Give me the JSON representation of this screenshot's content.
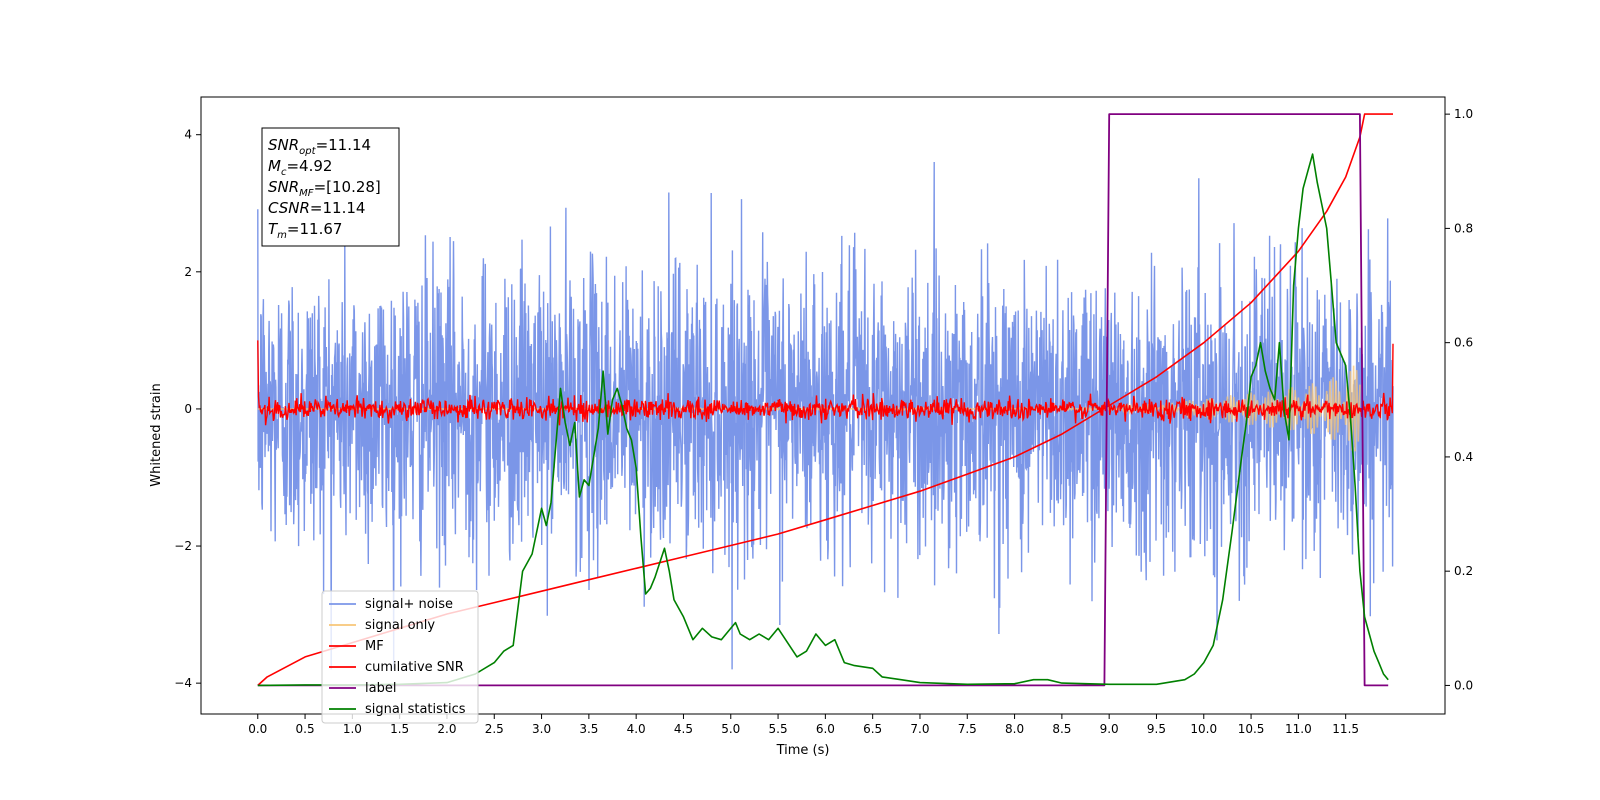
{
  "chart_data": {
    "type": "line",
    "title": "",
    "xlabel": "Time (s)",
    "ylabel_left": "Whitened strain",
    "ylabel_right": "",
    "xlim": [
      -0.6,
      12.55
    ],
    "ylim_left": [
      -4.45,
      4.55
    ],
    "ylim_right": [
      -0.05,
      1.03
    ],
    "x_ticks": [
      "0.0",
      "0.5",
      "1.0",
      "1.5",
      "2.0",
      "2.5",
      "3.0",
      "3.5",
      "4.0",
      "4.5",
      "5.0",
      "5.5",
      "6.0",
      "6.5",
      "7.0",
      "7.5",
      "8.0",
      "8.5",
      "9.0",
      "9.5",
      "10.0",
      "10.5",
      "11.0",
      "11.5"
    ],
    "y_ticks_left": [
      "−4",
      "−2",
      "0",
      "2",
      "4"
    ],
    "y_ticks_right": [
      "0.0",
      "0.2",
      "0.4",
      "0.6",
      "0.8",
      "1.0"
    ],
    "grid": false,
    "legend_position": "lower-left",
    "legend": [
      {
        "name": "signal+ noise",
        "color": "#7b96e8"
      },
      {
        "name": "signal only",
        "color": "#f7c678"
      },
      {
        "name": "MF",
        "color": "#ff0000"
      },
      {
        "name": "cumilative SNR",
        "color": "#ff0000"
      },
      {
        "name": "label",
        "color": "#800080"
      },
      {
        "name": "signal statistics",
        "color": "#008000"
      }
    ],
    "annotation": {
      "lines": [
        {
          "sym": "SNR",
          "sub": "opt",
          "val": "=11.14"
        },
        {
          "sym": "M",
          "sub": "c",
          "val": "=4.92"
        },
        {
          "sym": "SNR",
          "sub": "MF",
          "val": "=[10.28]"
        },
        {
          "sym": "CSNR",
          "sub": "",
          "val": "=11.14"
        },
        {
          "sym": "T",
          "sub": "m",
          "val": "=11.67"
        }
      ]
    },
    "series": [
      {
        "name": "signal+ noise",
        "axis": "left",
        "color": "#7b96e8",
        "kind": "noise",
        "x_start": 0.0,
        "x_end": 12.0,
        "amplitude_std": 1.0,
        "peak_range": [
          -3.8,
          4.15
        ]
      },
      {
        "name": "signal only",
        "axis": "left",
        "color": "#f7c678",
        "kind": "chirp-envelope",
        "x": [
          0.0,
          9.0,
          9.5,
          10.0,
          10.5,
          11.0,
          11.3,
          11.5,
          11.65
        ],
        "envelope": [
          0.0,
          0.02,
          0.08,
          0.15,
          0.24,
          0.33,
          0.42,
          0.55,
          0.7
        ]
      },
      {
        "name": "MF",
        "axis": "left",
        "color": "#ff0000",
        "kind": "noise",
        "x_start": 0.0,
        "x_end": 12.0,
        "amplitude_std": 0.08,
        "edge_values": [
          1.0,
          0.95
        ]
      },
      {
        "name": "cumilative SNR",
        "axis": "right",
        "color": "#ff0000",
        "x": [
          0.0,
          0.1,
          0.5,
          1.0,
          1.5,
          2.0,
          2.5,
          3.0,
          3.5,
          4.0,
          4.5,
          5.0,
          5.5,
          6.0,
          6.5,
          7.0,
          7.5,
          8.0,
          8.5,
          9.0,
          9.5,
          10.0,
          10.5,
          11.0,
          11.3,
          11.5,
          11.65,
          11.7,
          12.0
        ],
        "y": [
          0.0,
          0.015,
          0.05,
          0.075,
          0.1,
          0.125,
          0.145,
          0.165,
          0.185,
          0.205,
          0.225,
          0.245,
          0.265,
          0.29,
          0.315,
          0.34,
          0.37,
          0.4,
          0.44,
          0.49,
          0.54,
          0.6,
          0.67,
          0.76,
          0.83,
          0.89,
          0.96,
          1.0,
          1.0
        ]
      },
      {
        "name": "label",
        "axis": "right",
        "color": "#800080",
        "x": [
          0.0,
          8.95,
          9.0,
          11.65,
          11.7,
          11.95
        ],
        "y": [
          0.0,
          0.0,
          1.0,
          1.0,
          0.0,
          0.0
        ]
      },
      {
        "name": "signal statistics",
        "axis": "right",
        "color": "#008000",
        "x": [
          0.0,
          0.5,
          1.0,
          1.5,
          2.0,
          2.3,
          2.5,
          2.6,
          2.7,
          2.8,
          2.9,
          3.0,
          3.05,
          3.1,
          3.15,
          3.2,
          3.25,
          3.3,
          3.35,
          3.4,
          3.45,
          3.5,
          3.55,
          3.6,
          3.65,
          3.7,
          3.75,
          3.8,
          3.85,
          3.9,
          3.95,
          4.0,
          4.05,
          4.1,
          4.15,
          4.2,
          4.3,
          4.35,
          4.4,
          4.5,
          4.6,
          4.7,
          4.8,
          4.9,
          5.0,
          5.05,
          5.1,
          5.2,
          5.3,
          5.4,
          5.5,
          5.6,
          5.7,
          5.8,
          5.9,
          6.0,
          6.1,
          6.2,
          6.3,
          6.5,
          6.6,
          6.8,
          7.0,
          7.5,
          8.0,
          8.2,
          8.35,
          8.5,
          9.0,
          9.5,
          9.8,
          9.9,
          10.0,
          10.1,
          10.2,
          10.3,
          10.4,
          10.45,
          10.5,
          10.55,
          10.6,
          10.65,
          10.7,
          10.75,
          10.8,
          10.85,
          10.9,
          10.95,
          11.0,
          11.05,
          11.1,
          11.15,
          11.2,
          11.25,
          11.3,
          11.35,
          11.4,
          11.45,
          11.5,
          11.55,
          11.6,
          11.65,
          11.7,
          11.75,
          11.8,
          11.85,
          11.9,
          11.95
        ],
        "y": [
          0.0,
          0.001,
          0.001,
          0.002,
          0.005,
          0.02,
          0.04,
          0.06,
          0.07,
          0.2,
          0.23,
          0.31,
          0.28,
          0.32,
          0.42,
          0.52,
          0.46,
          0.42,
          0.46,
          0.33,
          0.36,
          0.35,
          0.4,
          0.45,
          0.55,
          0.44,
          0.5,
          0.52,
          0.49,
          0.45,
          0.43,
          0.38,
          0.26,
          0.16,
          0.17,
          0.19,
          0.24,
          0.2,
          0.15,
          0.12,
          0.08,
          0.1,
          0.085,
          0.08,
          0.1,
          0.11,
          0.09,
          0.08,
          0.09,
          0.08,
          0.1,
          0.075,
          0.05,
          0.06,
          0.09,
          0.07,
          0.08,
          0.04,
          0.035,
          0.03,
          0.015,
          0.01,
          0.005,
          0.002,
          0.003,
          0.01,
          0.01,
          0.004,
          0.002,
          0.002,
          0.01,
          0.02,
          0.04,
          0.07,
          0.15,
          0.27,
          0.4,
          0.46,
          0.54,
          0.56,
          0.6,
          0.55,
          0.52,
          0.5,
          0.6,
          0.48,
          0.43,
          0.7,
          0.8,
          0.87,
          0.9,
          0.93,
          0.88,
          0.84,
          0.8,
          0.7,
          0.6,
          0.58,
          0.56,
          0.47,
          0.35,
          0.2,
          0.12,
          0.09,
          0.06,
          0.04,
          0.02,
          0.01
        ]
      }
    ]
  }
}
